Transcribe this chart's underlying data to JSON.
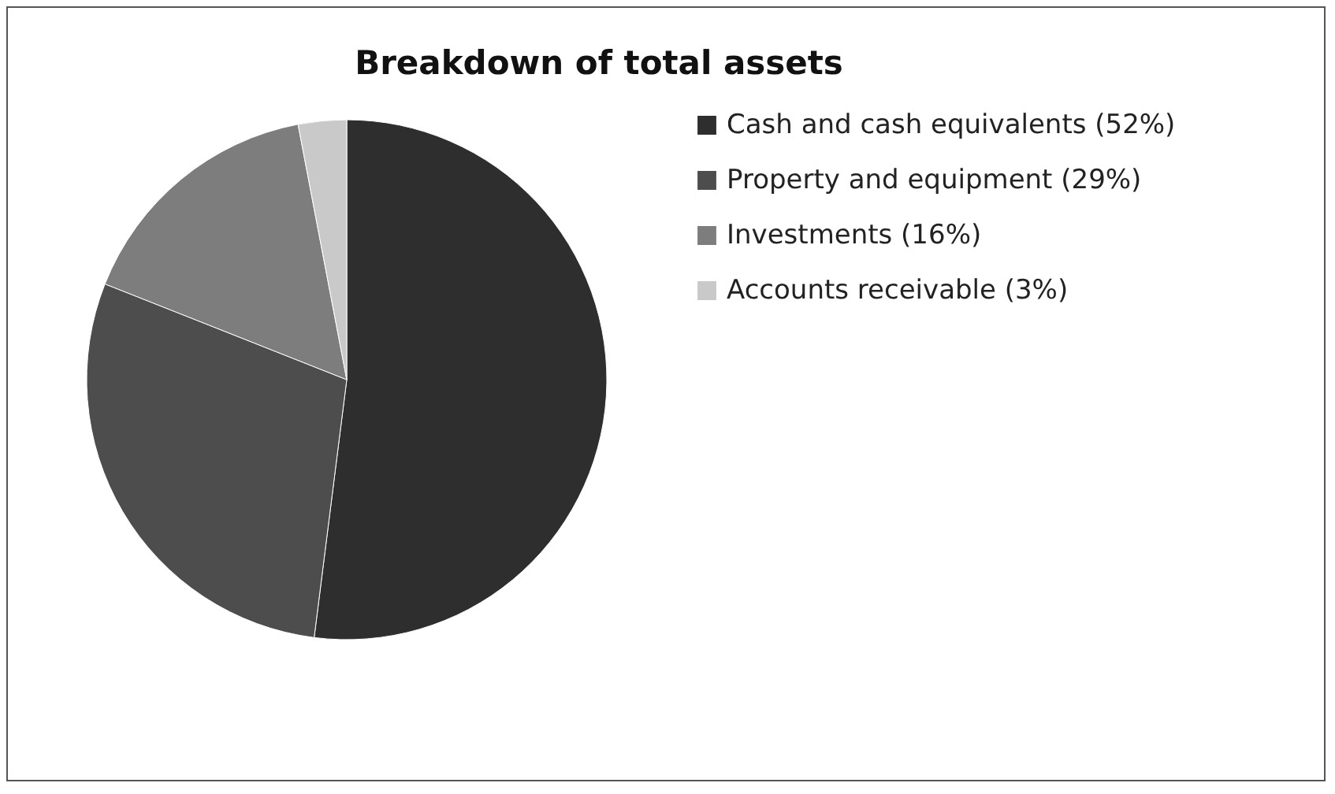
{
  "chart_data": {
    "type": "pie",
    "title": "Breakdown of total assets",
    "categories": [
      "Cash and cash equivalents (52%)",
      "Property and equipment (29%)",
      "Investments (16%)",
      "Accounts receivable (3%)"
    ],
    "values": [
      52,
      29,
      16,
      3
    ],
    "colors": [
      "#2e2e2e",
      "#4d4d4d",
      "#7d7d7d",
      "#c9c9c9"
    ],
    "legend": "right"
  }
}
